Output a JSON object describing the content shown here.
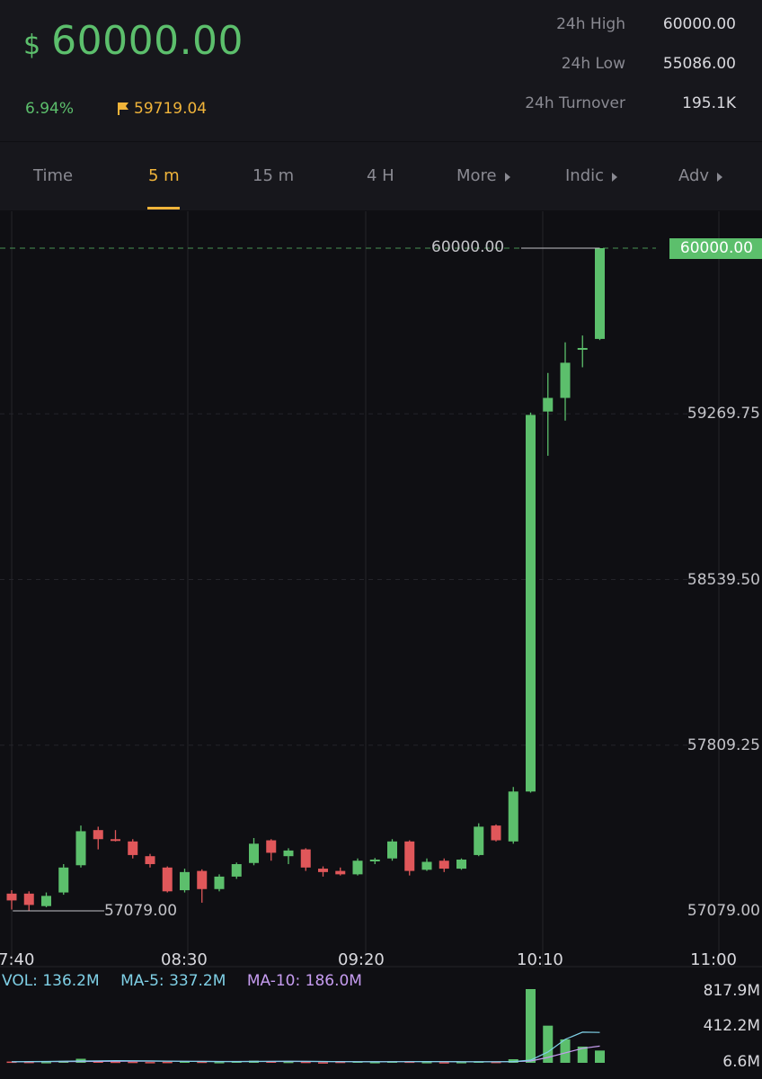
{
  "ticker": {
    "currency_symbol": "$",
    "last_price": "60000.00",
    "change_percent": "6.94%",
    "mark_price": "59719.04"
  },
  "stats": [
    {
      "label": "24h High",
      "value": "60000.00"
    },
    {
      "label": "24h Low",
      "value": "55086.00"
    },
    {
      "label": "24h Turnover",
      "value": "195.1K"
    }
  ],
  "tabs": [
    {
      "label": "Time",
      "active": false,
      "has_arrow": false
    },
    {
      "label": "5 m",
      "active": true,
      "has_arrow": false
    },
    {
      "label": "15 m",
      "active": false,
      "has_arrow": false
    },
    {
      "label": "4 H",
      "active": false,
      "has_arrow": false
    },
    {
      "label": "More",
      "active": false,
      "has_arrow": true
    },
    {
      "label": "Indic",
      "active": false,
      "has_arrow": true
    },
    {
      "label": "Adv",
      "active": false,
      "has_arrow": true
    }
  ],
  "chart": {
    "last_price_tag": "60000.00",
    "high_marker": "60000.00",
    "low_marker": "57079.00",
    "price_axis": [
      "59269.75",
      "58539.50",
      "57809.25",
      "57079.00"
    ],
    "time_axis": [
      "7:40",
      "08:30",
      "09:20",
      "10:10",
      "11:00"
    ],
    "volume_axis": [
      "817.9M",
      "412.2M",
      "6.6M"
    ],
    "indicators": {
      "vol": "VOL: 136.2M",
      "ma5": "MA-5: 337.2M",
      "ma10": "MA-10: 186.0M"
    },
    "colors": {
      "up": "#5cbf6c",
      "down": "#e0575a",
      "vol": "#7fd0e6",
      "ma5": "#7fd0e6",
      "ma10": "#c69cf0"
    }
  },
  "chart_data": {
    "type": "candlestick",
    "interval": "5 m",
    "y_range": [
      57079.0,
      60000.0
    ],
    "candles": [
      {
        "o": 57155,
        "h": 57170,
        "l": 57085,
        "c": 57125
      },
      {
        "o": 57155,
        "h": 57165,
        "l": 57080,
        "c": 57105
      },
      {
        "o": 57100,
        "h": 57160,
        "l": 57095,
        "c": 57145
      },
      {
        "o": 57160,
        "h": 57285,
        "l": 57150,
        "c": 57270
      },
      {
        "o": 57280,
        "h": 57455,
        "l": 57270,
        "c": 57430
      },
      {
        "o": 57435,
        "h": 57450,
        "l": 57350,
        "c": 57395
      },
      {
        "o": 57395,
        "h": 57435,
        "l": 57385,
        "c": 57390
      },
      {
        "o": 57385,
        "h": 57395,
        "l": 57310,
        "c": 57325
      },
      {
        "o": 57320,
        "h": 57330,
        "l": 57270,
        "c": 57285
      },
      {
        "o": 57270,
        "h": 57275,
        "l": 57160,
        "c": 57165
      },
      {
        "o": 57170,
        "h": 57265,
        "l": 57160,
        "c": 57250
      },
      {
        "o": 57255,
        "h": 57262,
        "l": 57115,
        "c": 57175
      },
      {
        "o": 57175,
        "h": 57240,
        "l": 57165,
        "c": 57230
      },
      {
        "o": 57230,
        "h": 57292,
        "l": 57220,
        "c": 57285
      },
      {
        "o": 57290,
        "h": 57400,
        "l": 57280,
        "c": 57375
      },
      {
        "o": 57390,
        "h": 57395,
        "l": 57300,
        "c": 57335
      },
      {
        "o": 57320,
        "h": 57355,
        "l": 57285,
        "c": 57345
      },
      {
        "o": 57350,
        "h": 57355,
        "l": 57255,
        "c": 57270
      },
      {
        "o": 57265,
        "h": 57275,
        "l": 57230,
        "c": 57250
      },
      {
        "o": 57255,
        "h": 57270,
        "l": 57235,
        "c": 57240
      },
      {
        "o": 57240,
        "h": 57310,
        "l": 57235,
        "c": 57300
      },
      {
        "o": 57305,
        "h": 57312,
        "l": 57285,
        "c": 57305
      },
      {
        "o": 57310,
        "h": 57395,
        "l": 57300,
        "c": 57385
      },
      {
        "o": 57385,
        "h": 57390,
        "l": 57235,
        "c": 57255
      },
      {
        "o": 57260,
        "h": 57310,
        "l": 57255,
        "c": 57295
      },
      {
        "o": 57300,
        "h": 57310,
        "l": 57250,
        "c": 57265
      },
      {
        "o": 57265,
        "h": 57310,
        "l": 57260,
        "c": 57305
      },
      {
        "o": 57325,
        "h": 57465,
        "l": 57320,
        "c": 57450
      },
      {
        "o": 57455,
        "h": 57460,
        "l": 57385,
        "c": 57390
      },
      {
        "o": 57385,
        "h": 57625,
        "l": 57375,
        "c": 57605
      },
      {
        "o": 57605,
        "h": 59275,
        "l": 57600,
        "c": 59265
      },
      {
        "o": 59280,
        "h": 59450,
        "l": 59085,
        "c": 59340
      },
      {
        "o": 59340,
        "h": 59585,
        "l": 59240,
        "c": 59495
      },
      {
        "o": 59560,
        "h": 59615,
        "l": 59475,
        "c": 59560
      },
      {
        "o": 59600,
        "h": 60000,
        "l": 59595,
        "c": 60000
      }
    ],
    "volume": {
      "axis_max": 817.9,
      "unit": "M",
      "values": [
        14,
        11,
        9,
        21,
        45,
        24,
        13,
        12,
        9,
        11,
        20,
        13,
        9,
        17,
        24,
        16,
        12,
        12,
        6,
        12,
        15,
        9,
        17,
        14,
        9,
        7,
        9,
        16,
        11,
        40,
        817.9,
        412.2,
        260,
        180,
        136.2
      ]
    },
    "ma5": [
      12,
      14,
      15,
      18,
      20,
      22,
      24,
      23,
      21,
      19,
      17,
      15,
      14,
      14,
      15,
      17,
      18,
      17,
      15,
      13,
      12,
      11,
      12,
      13,
      14,
      13,
      12,
      11,
      12,
      14,
      30,
      120,
      260,
      340,
      337.2
    ],
    "ma10": [
      11,
      12,
      13,
      14,
      15,
      16,
      17,
      18,
      18,
      18,
      17,
      16,
      15,
      15,
      15,
      15,
      15,
      15,
      14,
      14,
      13,
      13,
      13,
      13,
      13,
      13,
      12,
      12,
      12,
      13,
      20,
      60,
      110,
      160,
      186.0
    ]
  }
}
